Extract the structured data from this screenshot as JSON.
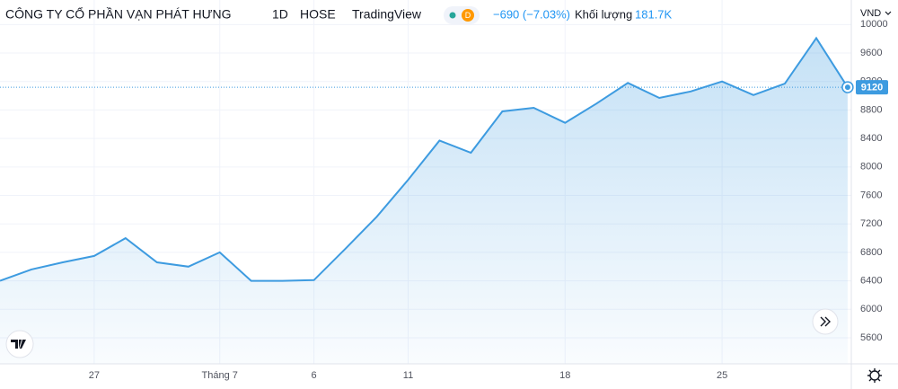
{
  "chart_data": {
    "type": "area",
    "title": "CÔNG TY CỔ PHẦN VẠN PHÁT HƯNG",
    "interval": "1D",
    "exchange": "HOSE",
    "source": "TradingView",
    "badge": "D",
    "change": "−690 (−7.03%)",
    "volume_label": "Khối lượng",
    "volume": "181.7K",
    "currency": "VND",
    "color": "#3d9be0",
    "grid": true,
    "categories": [
      null,
      null,
      null,
      "27",
      null,
      null,
      null,
      "Tháng 7",
      null,
      null,
      "6",
      null,
      null,
      "11",
      null,
      null,
      null,
      null,
      "18",
      null,
      null,
      null,
      null,
      "25",
      null,
      null,
      null,
      null
    ],
    "values": [
      6400,
      6560,
      6660,
      6750,
      7000,
      6660,
      6600,
      6800,
      6400,
      6400,
      6410,
      6850,
      7300,
      7820,
      8370,
      8200,
      8780,
      8830,
      8620,
      8890,
      9180,
      8970,
      9060,
      9200,
      9010,
      9170,
      9810,
      9120
    ],
    "ylim": [
      5234,
      10345
    ],
    "yticks": [
      5600,
      6000,
      6400,
      6800,
      7200,
      7600,
      8000,
      8400,
      8800,
      9200,
      9600,
      10000
    ]
  }
}
